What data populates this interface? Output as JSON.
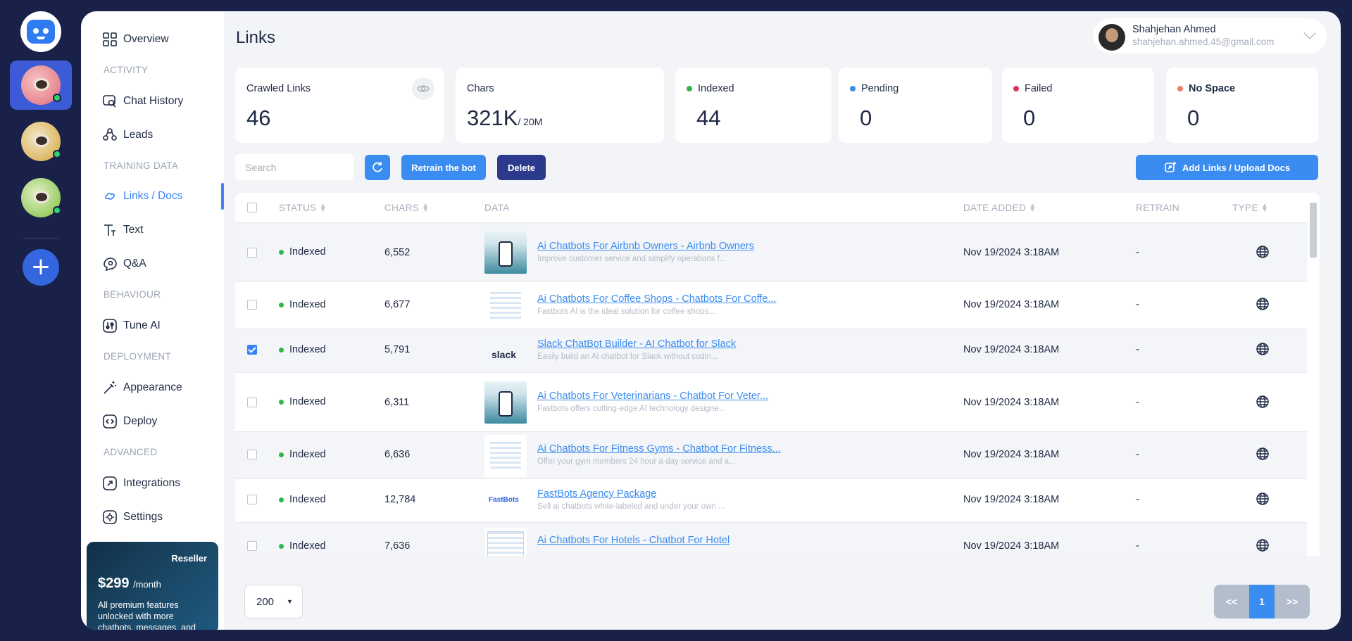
{
  "page": {
    "title": "Links"
  },
  "user": {
    "name": "Shahjehan Ahmed",
    "email": "shahjehan.ahmed.45@gmail.com"
  },
  "sidebar": {
    "overview": "Overview",
    "sections": {
      "activity": "ACTIVITY",
      "training": "TRAINING DATA",
      "behaviour": "BEHAVIOUR",
      "deployment": "DEPLOYMENT",
      "advanced": "ADVANCED"
    },
    "items": {
      "chat_history": "Chat History",
      "leads": "Leads",
      "links_docs": "Links / Docs",
      "text": "Text",
      "qa": "Q&A",
      "tune_ai": "Tune AI",
      "appearance": "Appearance",
      "deploy": "Deploy",
      "integrations": "Integrations",
      "settings": "Settings"
    },
    "promo": {
      "tag": "Reseller",
      "price": "$299",
      "period": "/month",
      "desc": "All premium features unlocked with more chatbots, messages, and"
    }
  },
  "stats": {
    "crawled": {
      "label": "Crawled Links",
      "value": "46"
    },
    "chars": {
      "label": "Chars",
      "value": "321K",
      "limit": "/ 20M"
    },
    "indexed": {
      "label": "Indexed",
      "value": "44",
      "color": "#2fb84a"
    },
    "pending": {
      "label": "Pending",
      "value": "0",
      "color": "#3b8cf0"
    },
    "failed": {
      "label": "Failed",
      "value": "0",
      "color": "#d9365c"
    },
    "nospace": {
      "label": "No Space",
      "value": "0",
      "color": "#f07c6b"
    }
  },
  "toolbar": {
    "search_placeholder": "Search",
    "retrain": "Retrain the bot",
    "delete": "Delete",
    "add": "Add Links / Upload Docs"
  },
  "table": {
    "headers": {
      "status": "STATUS",
      "chars": "CHARS",
      "data": "DATA",
      "date": "DATE ADDED",
      "retrain": "RETRAIN",
      "type": "TYPE"
    },
    "rows": [
      {
        "status": "Indexed",
        "chars": "6,552",
        "title": "Ai Chatbots For Airbnb Owners - Airbnb Owners",
        "sub": "Improve customer service and simplify operations f...",
        "date": "Nov 19/2024 3:18AM",
        "retrain": "-",
        "checked": false
      },
      {
        "status": "Indexed",
        "chars": "6,677",
        "title": "Ai Chatbots For Coffee Shops - Chatbots For Coffe...",
        "sub": "Fastbots AI is the ideal solution for coffee shops...",
        "date": "Nov 19/2024 3:18AM",
        "retrain": "-",
        "checked": false
      },
      {
        "status": "Indexed",
        "chars": "5,791",
        "title": "Slack ChatBot Builder - AI Chatbot for Slack",
        "sub": "Easily build an AI chatbot for Slack without codin...",
        "date": "Nov 19/2024 3:18AM",
        "retrain": "-",
        "checked": true
      },
      {
        "status": "Indexed",
        "chars": "6,311",
        "title": "Ai Chatbots For Veterinarians - Chatbot For Veter...",
        "sub": "Fastbots offers cutting-edge AI technology designe...",
        "date": "Nov 19/2024 3:18AM",
        "retrain": "-",
        "checked": false
      },
      {
        "status": "Indexed",
        "chars": "6,636",
        "title": "Ai Chatbots For Fitness Gyms - Chatbot For Fitness...",
        "sub": "Offer your gym members 24 hour a day service and a...",
        "date": "Nov 19/2024 3:18AM",
        "retrain": "-",
        "checked": false
      },
      {
        "status": "Indexed",
        "chars": "12,784",
        "title": "FastBots Agency Package",
        "sub": "Sell ai chatbots white-labeled and under your own ...",
        "date": "Nov 19/2024 3:18AM",
        "retrain": "-",
        "checked": false
      },
      {
        "status": "Indexed",
        "chars": "7,636",
        "title": "Ai Chatbots For Hotels - Chatbot For Hotel",
        "sub": "",
        "date": "Nov 19/2024 3:18AM",
        "retrain": "-",
        "checked": false
      }
    ],
    "thumb_labels": {
      "slack": "slack",
      "fastbots": "FastBots"
    }
  },
  "pagination": {
    "page_size": "200",
    "prev": "<<",
    "current": "1",
    "next": ">>"
  }
}
